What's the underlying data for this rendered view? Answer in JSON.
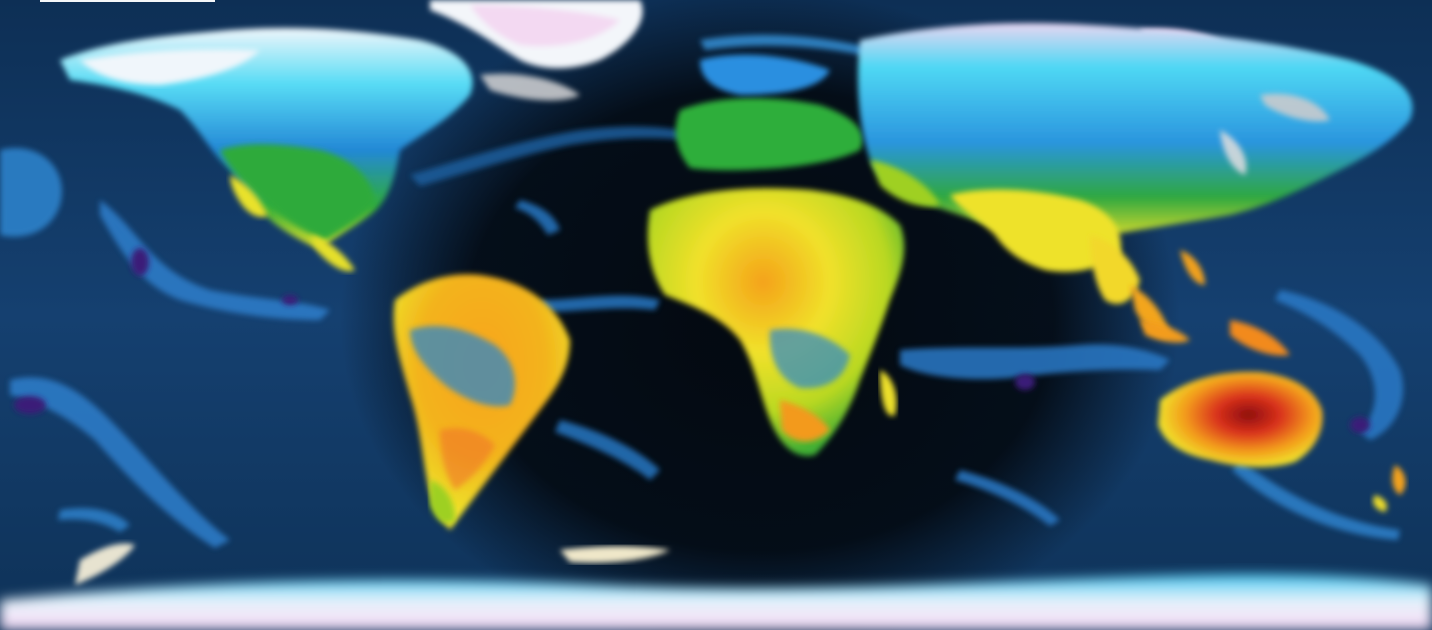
{
  "map": {
    "projection": "equirectangular",
    "layer": "temperature",
    "day_night_overlay": true,
    "colors": {
      "ocean_deep": "#0d2b4d",
      "ocean": "#173f66",
      "night": "#03070d",
      "ice": "#f2f6fb",
      "frost": "#e8d4f0",
      "cold_cyan": "#40d8f5",
      "cool_blue": "#1e88d8",
      "storm_blue": "#3a7fd0",
      "storm_core": "#3a1a78",
      "temperate_green": "#2fae3a",
      "mild_lime": "#9ed022",
      "warm_yellow": "#f1e62a",
      "hot_orange": "#f5a118",
      "very_hot_red": "#d8301a",
      "extreme_red": "#9a1010",
      "snow_grey": "#c9cbce"
    }
  },
  "ui": {
    "scale_bar_color": "#f4f6f8"
  }
}
